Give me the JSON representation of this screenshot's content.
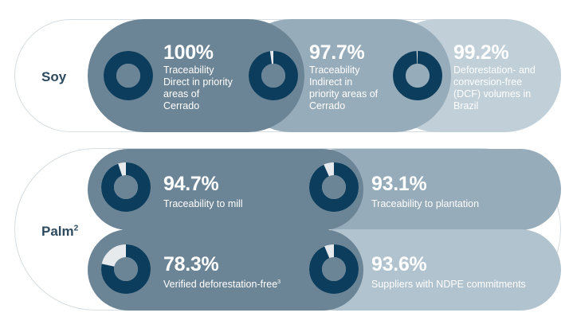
{
  "colors": {
    "ring_filled": "#0c3d5c",
    "ring_empty": "#e6eaed",
    "outline_border": "#d6dde2",
    "label_text": "#2e4a5e",
    "soy_pill_1": "#6c8596",
    "soy_pill_2": "#97acba",
    "soy_pill_3": "#c0cfd8",
    "palm_pill_1": "#6c8596",
    "palm_pill_2": "#97acba",
    "palm_pill_3": "#6c8596",
    "palm_pill_4": "#b1c3ce"
  },
  "chart_data": {
    "type": "pie",
    "categories": [
      {
        "label": "Soy",
        "label_sup": "",
        "metrics": [
          {
            "value": 100,
            "value_label": "100%",
            "description": "Traceability Direct in priority areas of Cerrado"
          },
          {
            "value": 97.7,
            "value_label": "97.7%",
            "description": "Traceability Indirect in priority areas of Cerrado"
          },
          {
            "value": 99.2,
            "value_label": "99.2%",
            "description": "Deforestation- and conversion-free (DCF) volumes in Brazil"
          }
        ]
      },
      {
        "label": "Palm",
        "label_sup": "2",
        "metrics": [
          {
            "value": 94.7,
            "value_label": "94.7%",
            "description": "Traceability to mill",
            "description_sup": ""
          },
          {
            "value": 93.1,
            "value_label": "93.1%",
            "description": "Traceability to plantation",
            "description_sup": ""
          },
          {
            "value": 78.3,
            "value_label": "78.3%",
            "description": "Verified deforestation-free",
            "description_sup": "3"
          },
          {
            "value": 93.6,
            "value_label": "93.6%",
            "description": "Suppliers with NDPE commitments",
            "description_sup": ""
          }
        ]
      }
    ]
  }
}
